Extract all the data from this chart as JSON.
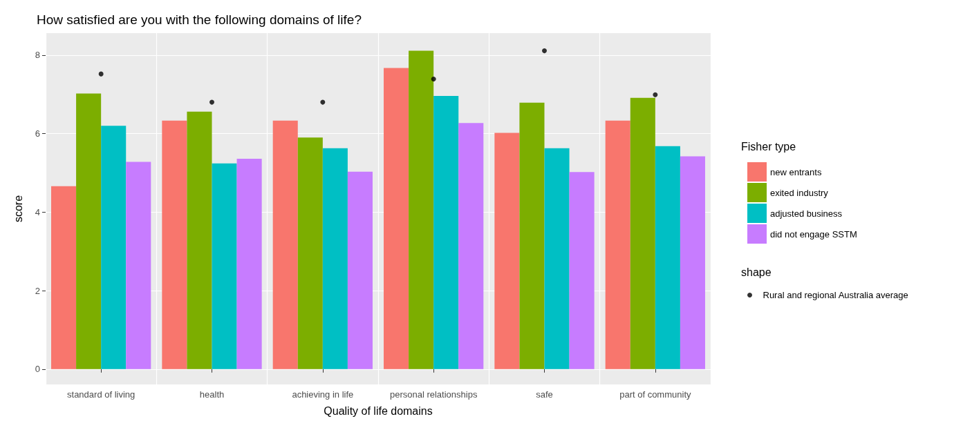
{
  "chart_data": {
    "type": "bar",
    "title": "How satisfied are you with the following domains of life?",
    "xlabel": "Quality of life domains",
    "ylabel": "score",
    "legend_title": "Fisher type",
    "annotations": [
      "shape"
    ],
    "categories": [
      "standard of living",
      "health",
      "achieving in life",
      "personal relationships",
      "safe",
      "part of community"
    ],
    "series": [
      {
        "name": "new entrants",
        "color": "#f8766d",
        "values": [
          4.66,
          6.33,
          6.33,
          7.67,
          6.02,
          6.33
        ]
      },
      {
        "name": "exited industry",
        "color": "#7cae00",
        "values": [
          7.02,
          6.56,
          5.9,
          8.11,
          6.79,
          6.91
        ]
      },
      {
        "name": "adjusted business",
        "color": "#00bfc4",
        "values": [
          6.2,
          5.24,
          5.63,
          6.96,
          5.63,
          5.68
        ]
      },
      {
        "name": "did not engage SSTM",
        "color": "#c77cff",
        "values": [
          5.28,
          5.36,
          5.03,
          6.27,
          5.02,
          5.42
        ]
      },
      {
        "name": "Rural and regional Australia average",
        "type": "scatter",
        "color": "#000000",
        "x": [
          "standard of living",
          "health",
          "achieving in life",
          "personal relationships",
          "safe",
          "part of community"
        ],
        "values": [
          7.52,
          6.8,
          6.8,
          7.39,
          8.11,
          6.99
        ]
      }
    ],
    "ylim": [
      -0.39,
      8.56
    ],
    "yticks": [
      0,
      2,
      4,
      6,
      8
    ],
    "grid": true,
    "legend": "right",
    "marker": "circle"
  }
}
